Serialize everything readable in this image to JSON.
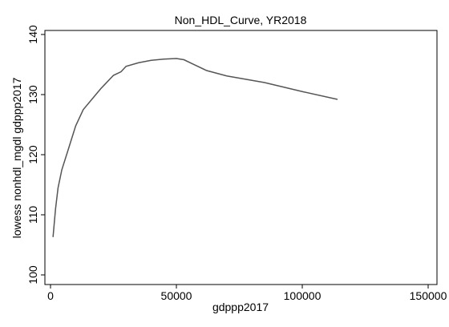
{
  "chart_data": {
    "type": "line",
    "title": "Non_HDL_Curve, YR2018",
    "x_label": "gdppp2017",
    "y_label": "lowess nonhdl_mgdl gdppp2017",
    "x": [
      1000,
      2000,
      3000,
      4500,
      7000,
      10000,
      13000,
      17000,
      20000,
      25000,
      28000,
      30000,
      35000,
      40000,
      45000,
      50000,
      53000,
      57000,
      62000,
      70000,
      85000,
      100000,
      114000
    ],
    "series": [
      {
        "name": "lowess",
        "color": "#555555",
        "values": [
          106.3,
          111,
          114.5,
          117.5,
          120.8,
          124.8,
          127.5,
          129.5,
          131,
          133.2,
          133.8,
          134.7,
          135.3,
          135.7,
          135.9,
          136,
          135.8,
          135,
          134,
          133.1,
          132,
          130.5,
          129.2
        ]
      }
    ],
    "xlim": [
      -2229,
      153500
    ],
    "ylim": [
      98.4,
      140.67
    ],
    "xticks": [
      0,
      50000,
      100000,
      150000
    ],
    "yticks": [
      100,
      110,
      120,
      130,
      140
    ],
    "grid": false
  }
}
